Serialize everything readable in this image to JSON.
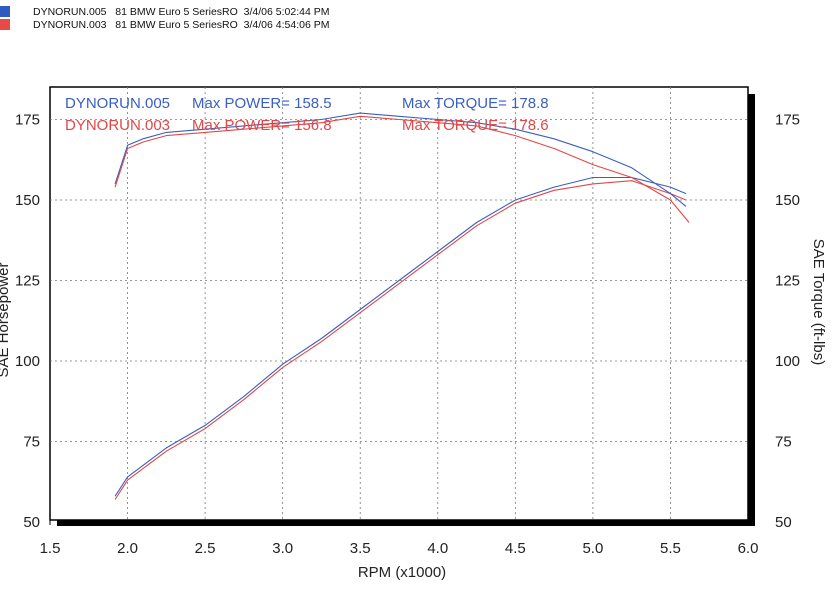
{
  "header": {
    "runs": [
      {
        "label": "DYNORUN.005   81 BMW Euro 5 SeriesRO  3/4/06 5:02:44 PM",
        "color": "#2e5bbf"
      },
      {
        "label": "DYNORUN.003   81 BMW Euro 5 SeriesRO  3/4/06 4:54:06 PM",
        "color": "#e84a4a"
      }
    ]
  },
  "annotations": {
    "run005_name": "DYNORUN.005",
    "run005_power": "Max POWER= 158.5",
    "run005_torque": "Max TORQUE= 178.8",
    "run003_name": "DYNORUN.003",
    "run003_power": "Max POWER= 156.8",
    "run003_torque": "Max TORQUE= 178.6"
  },
  "chart_data": {
    "type": "line",
    "xlabel": "RPM (x1000)",
    "ylabel_left": "SAE Horsepower",
    "ylabel_right": "SAE Torque (ft-lbs)",
    "xlim": [
      1.5,
      6.0
    ],
    "ylim": [
      50,
      180
    ],
    "x_ticks": [
      "1.5",
      "2.0",
      "2.5",
      "3.0",
      "3.5",
      "4.0",
      "4.5",
      "5.0",
      "5.5",
      "6.0"
    ],
    "y_ticks": [
      "50",
      "75",
      "100",
      "125",
      "150",
      "175"
    ],
    "grid": true,
    "series": [
      {
        "name": "DYNORUN.005 Power",
        "color": "#3a5fc0",
        "x": [
          1.92,
          2.0,
          2.25,
          2.5,
          2.75,
          3.0,
          3.25,
          3.5,
          3.75,
          4.0,
          4.25,
          4.5,
          4.75,
          5.0,
          5.25,
          5.5,
          5.6
        ],
        "y": [
          58,
          64,
          73,
          80,
          89,
          99,
          107,
          116,
          125,
          134,
          143,
          150,
          154,
          157,
          157,
          154,
          152
        ]
      },
      {
        "name": "DYNORUN.003 Power",
        "color": "#e04848",
        "x": [
          1.92,
          2.0,
          2.25,
          2.5,
          2.75,
          3.0,
          3.25,
          3.5,
          3.75,
          4.0,
          4.25,
          4.5,
          4.75,
          5.0,
          5.25,
          5.5,
          5.6
        ],
        "y": [
          57,
          63,
          72,
          79,
          88,
          98,
          106,
          115,
          124,
          133,
          142,
          149,
          153,
          155,
          156,
          152,
          150
        ]
      },
      {
        "name": "DYNORUN.005 Torque",
        "color": "#3a5fc0",
        "x": [
          1.92,
          2.0,
          2.1,
          2.25,
          2.5,
          2.75,
          3.0,
          3.25,
          3.5,
          3.75,
          4.0,
          4.25,
          4.5,
          4.75,
          5.0,
          5.25,
          5.5,
          5.6
        ],
        "y": [
          155,
          167,
          169,
          171,
          172,
          173,
          174,
          175,
          177,
          176,
          175,
          174,
          172,
          169,
          165,
          160,
          152,
          148
        ]
      },
      {
        "name": "DYNORUN.003 Torque",
        "color": "#e04848",
        "x": [
          1.92,
          2.0,
          2.1,
          2.25,
          2.5,
          2.75,
          3.0,
          3.25,
          3.5,
          3.75,
          4.0,
          4.25,
          4.5,
          4.75,
          5.0,
          5.25,
          5.5,
          5.62
        ],
        "y": [
          154,
          166,
          168,
          170,
          171,
          172,
          173,
          174,
          176,
          175,
          174,
          173,
          170,
          166,
          161,
          157,
          150,
          143
        ]
      }
    ]
  }
}
